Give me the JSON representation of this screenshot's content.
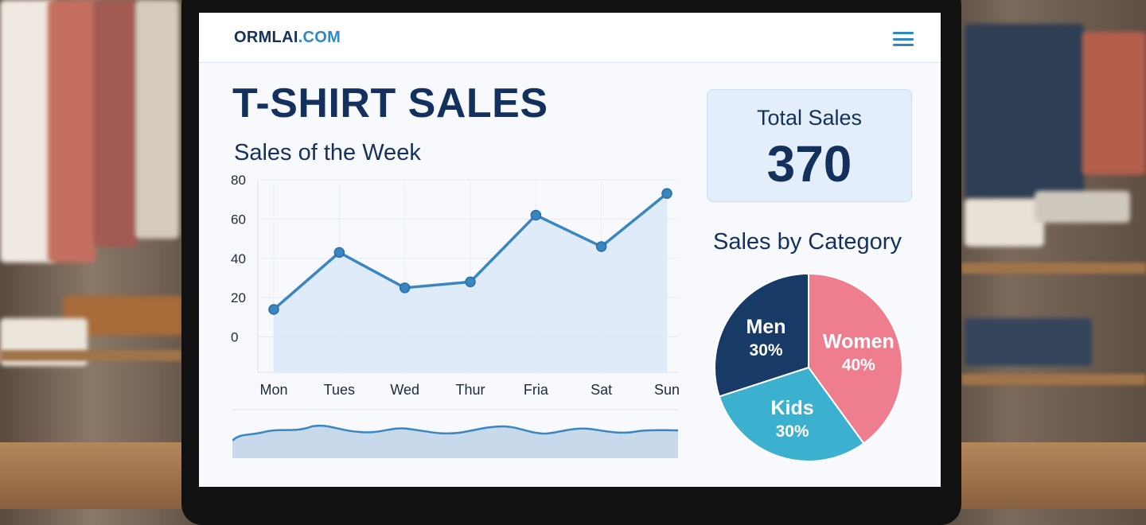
{
  "brand": {
    "name_part1": "ORMLAI",
    "name_part2": ".COM"
  },
  "header": {
    "title": "T-SHIRT SALES",
    "menu_icon": "hamburger-menu-icon"
  },
  "weekly": {
    "title": "Sales of the Week"
  },
  "summary": {
    "label": "Total Sales",
    "value": "370"
  },
  "category": {
    "title": "Sales by Category"
  },
  "colors": {
    "navy": "#13315c",
    "accent": "#2f88c6",
    "line": "#3a86c0",
    "area": "#dbe9f7",
    "men": "#173a66",
    "women": "#ee7d8e",
    "kids": "#3cb1cf"
  },
  "chart_data": [
    {
      "type": "line",
      "title": "Sales of the Week",
      "categories": [
        "Mon",
        "Tues",
        "Wed",
        "Thur",
        "Fria",
        "Sat",
        "Sun"
      ],
      "values": [
        14,
        43,
        25,
        28,
        62,
        46,
        73
      ],
      "yticks": [
        0,
        20,
        40,
        60,
        80
      ],
      "ylim": [
        -18,
        80
      ],
      "fill": "area",
      "grid": true
    },
    {
      "type": "pie",
      "title": "Sales by Category",
      "slices": [
        {
          "label": "Women",
          "value": 40,
          "pct_label": "40%"
        },
        {
          "label": "Kids",
          "value": 30,
          "pct_label": "30%"
        },
        {
          "label": "Men",
          "value": 30,
          "pct_label": "30%"
        }
      ]
    }
  ]
}
